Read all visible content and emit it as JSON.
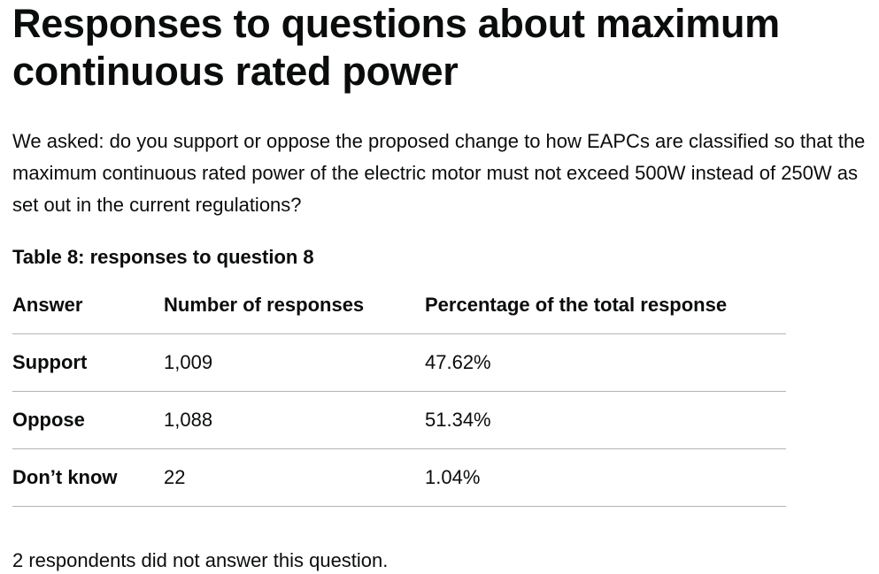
{
  "heading": "Responses to questions about maximum continuous rated power",
  "intro": "We asked: do you support or oppose the proposed change to how EAPCs are classified so that the maximum continuous rated power of the electric motor must not exceed 500W instead of 250W as set out in the current regulations?",
  "table": {
    "caption": "Table 8: responses to question 8",
    "headers": [
      "Answer",
      "Number of responses",
      "Percentage of the total response"
    ],
    "rows": [
      {
        "answer": "Support",
        "count": "1,009",
        "percent": "47.62%"
      },
      {
        "answer": "Oppose",
        "count": "1,088",
        "percent": "51.34%"
      },
      {
        "answer": "Don’t know",
        "count": "22",
        "percent": "1.04%"
      }
    ]
  },
  "footnote": "2 respondents did not answer this question."
}
